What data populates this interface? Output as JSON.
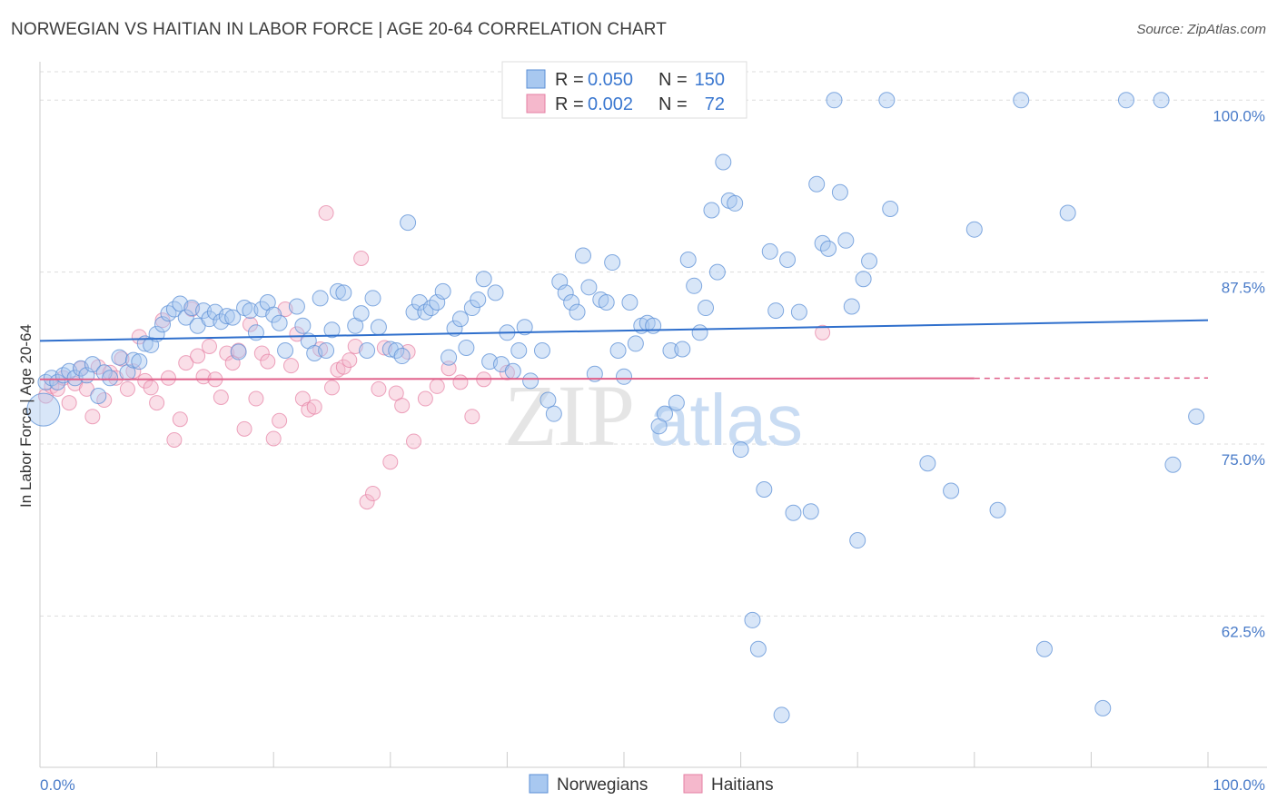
{
  "title": "NORWEGIAN VS HAITIAN IN LABOR FORCE | AGE 20-64 CORRELATION CHART",
  "source": "Source: ZipAtlas.com",
  "watermark": {
    "part1": "ZIP",
    "part2": "atlas"
  },
  "colors": {
    "norwegian_fill": "#a8c8f0",
    "norwegian_stroke": "#5b8fd6",
    "norwegian_line": "#2f6fcc",
    "haitian_fill": "#f5b8cc",
    "haitian_stroke": "#e57fa3",
    "haitian_line": "#e0608a",
    "axis_label": "#4a7cc9",
    "grid": "#dddddd"
  },
  "legend": {
    "row1": {
      "r_label": "R =",
      "r_value": "0.050",
      "n_label": "N =",
      "n_value": "150"
    },
    "row2": {
      "r_label": "R =",
      "r_value": "0.002",
      "n_label": "N =",
      "n_value": "72"
    }
  },
  "bottom_legend": {
    "series1": "Norwegians",
    "series2": "Haitians"
  },
  "chart_data": {
    "type": "scatter",
    "title": "NORWEGIAN VS HAITIAN IN LABOR FORCE | AGE 20-64 CORRELATION CHART",
    "xlabel": "",
    "ylabel": "In Labor Force | Age 20-64",
    "xlim": [
      0,
      100
    ],
    "ylim": [
      51.5,
      102.0
    ],
    "x_tick_labels": [
      "0.0%",
      "100.0%"
    ],
    "y_ticks": [
      62.5,
      75.0,
      87.5,
      100.0
    ],
    "y_tick_labels": [
      "62.5%",
      "75.0%",
      "87.5%",
      "100.0%"
    ],
    "grid": true,
    "legend_position": "top-center",
    "series": [
      {
        "name": "Norwegians",
        "r": 0.05,
        "n": 150,
        "trend": {
          "x": [
            0,
            100
          ],
          "y": [
            82.5,
            84.0
          ]
        },
        "points": [
          [
            0.3,
            77.5
          ],
          [
            0.5,
            79.5
          ],
          [
            1.0,
            79.8
          ],
          [
            1.5,
            79.5
          ],
          [
            2.0,
            80.0
          ],
          [
            2.5,
            80.3
          ],
          [
            3.0,
            79.8
          ],
          [
            3.5,
            80.5
          ],
          [
            4.0,
            80.0
          ],
          [
            4.5,
            80.8
          ],
          [
            5.0,
            78.5
          ],
          [
            5.5,
            80.2
          ],
          [
            6.0,
            79.8
          ],
          [
            6.8,
            81.3
          ],
          [
            7.5,
            80.2
          ],
          [
            8.0,
            81.1
          ],
          [
            8.5,
            81.0
          ],
          [
            9.0,
            82.3
          ],
          [
            9.5,
            82.2
          ],
          [
            10.0,
            83.0
          ],
          [
            10.5,
            83.7
          ],
          [
            11.0,
            84.5
          ],
          [
            11.5,
            84.8
          ],
          [
            12.0,
            85.2
          ],
          [
            12.5,
            84.2
          ],
          [
            13.0,
            84.9
          ],
          [
            13.5,
            83.6
          ],
          [
            14.0,
            84.7
          ],
          [
            14.5,
            84.1
          ],
          [
            15.0,
            84.6
          ],
          [
            15.5,
            83.9
          ],
          [
            16.0,
            84.3
          ],
          [
            16.5,
            84.2
          ],
          [
            17.0,
            81.7
          ],
          [
            17.5,
            84.9
          ],
          [
            18.0,
            84.7
          ],
          [
            18.5,
            83.1
          ],
          [
            19.0,
            84.8
          ],
          [
            19.5,
            85.3
          ],
          [
            20.0,
            84.4
          ],
          [
            20.5,
            83.8
          ],
          [
            21.0,
            81.8
          ],
          [
            22.0,
            85.0
          ],
          [
            22.5,
            83.6
          ],
          [
            23.0,
            82.5
          ],
          [
            23.5,
            81.6
          ],
          [
            24.0,
            85.6
          ],
          [
            24.5,
            81.8
          ],
          [
            25.0,
            83.3
          ],
          [
            25.5,
            86.1
          ],
          [
            26.0,
            86.0
          ],
          [
            27.0,
            83.6
          ],
          [
            27.5,
            84.5
          ],
          [
            28.0,
            81.8
          ],
          [
            28.5,
            85.6
          ],
          [
            29.0,
            83.5
          ],
          [
            30.0,
            81.9
          ],
          [
            30.5,
            81.8
          ],
          [
            31.0,
            81.4
          ],
          [
            31.5,
            91.1
          ],
          [
            32.0,
            84.6
          ],
          [
            32.5,
            85.3
          ],
          [
            33.0,
            84.6
          ],
          [
            33.5,
            84.9
          ],
          [
            34.0,
            85.3
          ],
          [
            34.5,
            86.1
          ],
          [
            35.0,
            81.3
          ],
          [
            35.5,
            83.4
          ],
          [
            36.0,
            84.1
          ],
          [
            36.5,
            82.0
          ],
          [
            37.0,
            84.9
          ],
          [
            37.5,
            85.5
          ],
          [
            38.0,
            87.0
          ],
          [
            38.5,
            81.0
          ],
          [
            39.0,
            86.0
          ],
          [
            39.5,
            80.8
          ],
          [
            40.0,
            83.1
          ],
          [
            40.5,
            80.3
          ],
          [
            41.0,
            81.8
          ],
          [
            41.5,
            83.5
          ],
          [
            42.0,
            79.6
          ],
          [
            43.0,
            81.8
          ],
          [
            43.5,
            78.2
          ],
          [
            44.0,
            77.2
          ],
          [
            44.5,
            86.8
          ],
          [
            45.0,
            86.0
          ],
          [
            45.5,
            85.3
          ],
          [
            46.0,
            84.6
          ],
          [
            46.5,
            88.7
          ],
          [
            47.0,
            86.4
          ],
          [
            47.5,
            80.1
          ],
          [
            48.0,
            85.5
          ],
          [
            48.5,
            85.3
          ],
          [
            49.0,
            88.2
          ],
          [
            49.5,
            81.8
          ],
          [
            50.0,
            79.9
          ],
          [
            50.5,
            85.3
          ],
          [
            51.0,
            82.3
          ],
          [
            51.5,
            83.6
          ],
          [
            52.0,
            83.8
          ],
          [
            52.5,
            83.6
          ],
          [
            53.0,
            76.3
          ],
          [
            53.5,
            77.2
          ],
          [
            54.0,
            81.8
          ],
          [
            54.5,
            78.0
          ],
          [
            55.0,
            81.9
          ],
          [
            55.5,
            88.4
          ],
          [
            56.0,
            86.5
          ],
          [
            56.5,
            83.1
          ],
          [
            57.0,
            84.9
          ],
          [
            57.5,
            92.0
          ],
          [
            58.0,
            87.5
          ],
          [
            58.5,
            95.5
          ],
          [
            59.0,
            92.7
          ],
          [
            59.5,
            92.5
          ],
          [
            60.0,
            74.6
          ],
          [
            61.0,
            62.2
          ],
          [
            61.5,
            60.1
          ],
          [
            62.0,
            71.7
          ],
          [
            62.5,
            89.0
          ],
          [
            63.0,
            84.7
          ],
          [
            63.5,
            55.3
          ],
          [
            64.0,
            88.4
          ],
          [
            64.5,
            70.0
          ],
          [
            65.0,
            84.6
          ],
          [
            66.0,
            70.1
          ],
          [
            66.5,
            93.9
          ],
          [
            67.0,
            89.6
          ],
          [
            67.5,
            89.2
          ],
          [
            68.0,
            100.0
          ],
          [
            68.5,
            93.3
          ],
          [
            69.0,
            89.8
          ],
          [
            69.5,
            85.0
          ],
          [
            70.0,
            68.0
          ],
          [
            70.5,
            87.0
          ],
          [
            71.0,
            88.3
          ],
          [
            72.5,
            100.0
          ],
          [
            72.8,
            92.1
          ],
          [
            76.0,
            73.6
          ],
          [
            78.0,
            71.6
          ],
          [
            80.0,
            90.6
          ],
          [
            82.0,
            70.2
          ],
          [
            84.0,
            100.0
          ],
          [
            86.0,
            60.1
          ],
          [
            88.0,
            91.8
          ],
          [
            91.0,
            55.8
          ],
          [
            93.0,
            100.0
          ],
          [
            96.0,
            100.0
          ],
          [
            97.0,
            73.5
          ],
          [
            99.0,
            77.0
          ]
        ]
      },
      {
        "name": "Haitians",
        "r": 0.002,
        "n": 72,
        "trend": {
          "x": [
            0,
            100
          ],
          "y": [
            79.7,
            79.8
          ]
        },
        "trend_solid_until": 80,
        "points": [
          [
            0.5,
            78.5
          ],
          [
            1.0,
            79.2
          ],
          [
            1.5,
            79.0
          ],
          [
            2.0,
            79.8
          ],
          [
            2.5,
            78.0
          ],
          [
            3.0,
            79.4
          ],
          [
            3.5,
            80.5
          ],
          [
            4.0,
            79.0
          ],
          [
            4.5,
            77.0
          ],
          [
            5.0,
            80.6
          ],
          [
            5.5,
            78.2
          ],
          [
            6.0,
            80.2
          ],
          [
            6.5,
            79.8
          ],
          [
            7.0,
            81.2
          ],
          [
            7.5,
            79.0
          ],
          [
            8.0,
            80.3
          ],
          [
            8.5,
            82.8
          ],
          [
            9.0,
            79.6
          ],
          [
            9.5,
            79.1
          ],
          [
            10.0,
            78.0
          ],
          [
            10.5,
            84.0
          ],
          [
            11.0,
            79.8
          ],
          [
            11.5,
            75.3
          ],
          [
            12.0,
            76.8
          ],
          [
            12.5,
            80.9
          ],
          [
            13.0,
            84.8
          ],
          [
            13.5,
            81.4
          ],
          [
            14.0,
            79.9
          ],
          [
            14.5,
            82.1
          ],
          [
            15.0,
            79.7
          ],
          [
            15.5,
            78.4
          ],
          [
            16.0,
            81.6
          ],
          [
            16.5,
            80.9
          ],
          [
            17.0,
            81.8
          ],
          [
            17.5,
            76.1
          ],
          [
            18.0,
            83.7
          ],
          [
            18.5,
            78.3
          ],
          [
            19.0,
            81.6
          ],
          [
            19.5,
            81.0
          ],
          [
            20.0,
            75.4
          ],
          [
            20.5,
            76.7
          ],
          [
            21.0,
            84.8
          ],
          [
            21.5,
            80.7
          ],
          [
            22.0,
            83.0
          ],
          [
            22.5,
            78.3
          ],
          [
            23.0,
            77.5
          ],
          [
            23.5,
            77.7
          ],
          [
            24.0,
            81.9
          ],
          [
            24.5,
            91.8
          ],
          [
            25.0,
            79.1
          ],
          [
            25.5,
            80.4
          ],
          [
            26.0,
            80.6
          ],
          [
            26.5,
            81.1
          ],
          [
            27.0,
            82.1
          ],
          [
            27.5,
            88.5
          ],
          [
            28.0,
            70.8
          ],
          [
            28.5,
            71.4
          ],
          [
            29.0,
            79.0
          ],
          [
            29.5,
            82.0
          ],
          [
            30.0,
            73.7
          ],
          [
            30.5,
            78.7
          ],
          [
            31.0,
            77.8
          ],
          [
            31.5,
            81.7
          ],
          [
            32.0,
            75.2
          ],
          [
            33.0,
            78.3
          ],
          [
            34.0,
            79.2
          ],
          [
            35.0,
            80.5
          ],
          [
            36.0,
            79.5
          ],
          [
            37.0,
            77.0
          ],
          [
            38.0,
            79.7
          ],
          [
            40.0,
            80.2
          ],
          [
            67.0,
            83.1
          ]
        ]
      }
    ]
  }
}
